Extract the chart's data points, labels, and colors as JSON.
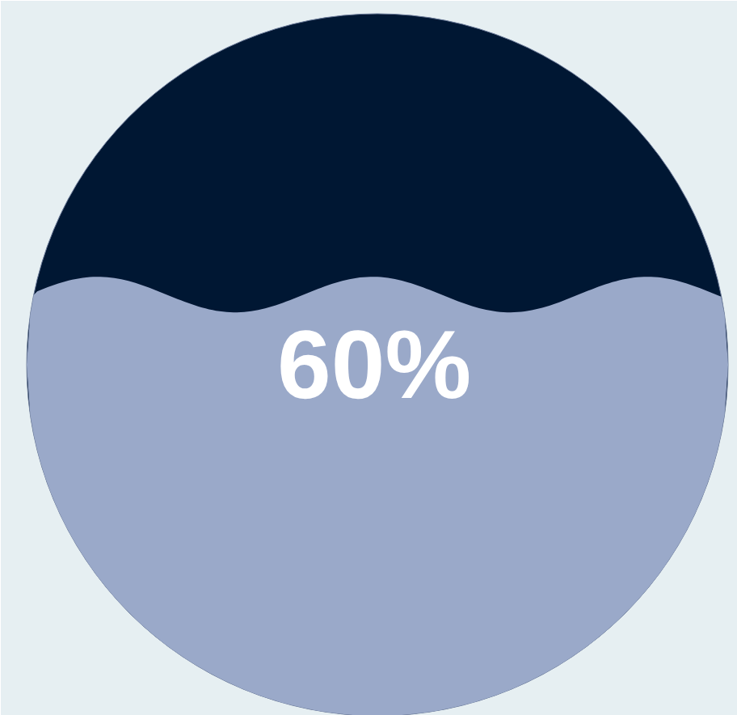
{
  "chart_data": {
    "type": "other",
    "categories": [
      null
    ],
    "values": [
      60
    ],
    "value_labels": [
      "60%"
    ],
    "colors": [
      "#9aa9c9"
    ]
  }
}
